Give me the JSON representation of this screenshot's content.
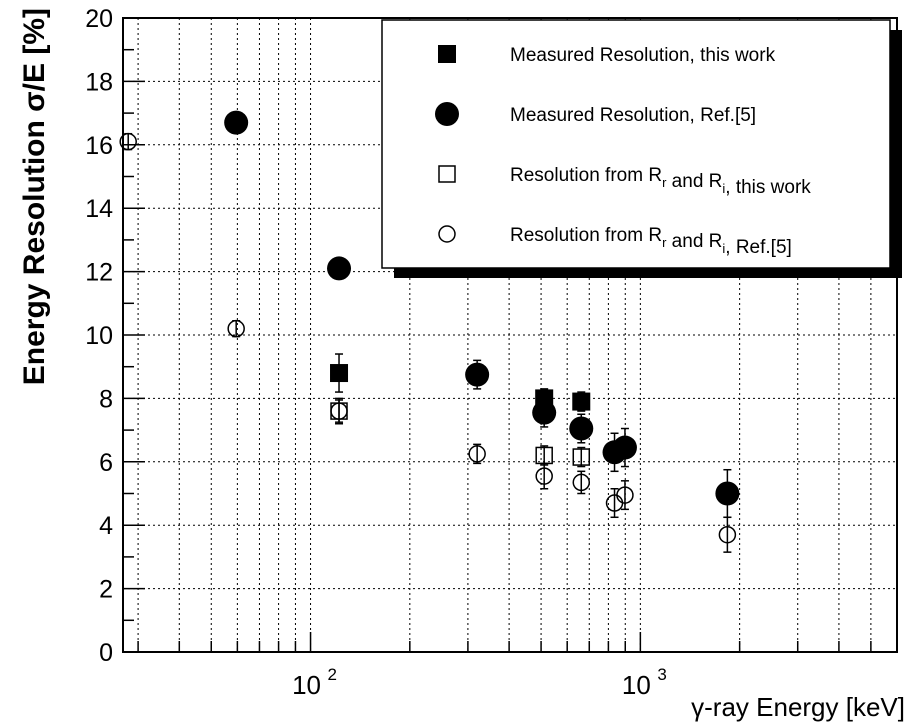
{
  "chart_data": {
    "type": "scatter",
    "xscale": "log",
    "xlim": [
      27,
      6000
    ],
    "ylim": [
      0,
      20
    ],
    "grid": true,
    "xlabel": "γ-ray Energy [keV]",
    "ylabel": "Energy Resolution σ/E [%]",
    "xticks": [
      {
        "base": "10",
        "exp": "2",
        "value": 100
      },
      {
        "base": "10",
        "exp": "3",
        "value": 1000
      }
    ],
    "yticks": [
      "0",
      "2",
      "4",
      "6",
      "8",
      "10",
      "12",
      "14",
      "16",
      "18",
      "20"
    ],
    "legend_position": "top-right",
    "series": [
      {
        "name": "Measured Resolution, this work",
        "marker": "filled-square",
        "points": [
          {
            "x": 122,
            "y": 8.8,
            "err": 0.6
          },
          {
            "x": 511,
            "y": 8.0,
            "err": 0.3
          },
          {
            "x": 662,
            "y": 7.9,
            "err": 0.3
          }
        ]
      },
      {
        "name": "Measured Resolution, Ref.[5]",
        "marker": "filled-circle",
        "points": [
          {
            "x": 59.5,
            "y": 16.7,
            "err": 0.2
          },
          {
            "x": 122,
            "y": 12.1,
            "err": 0.3
          },
          {
            "x": 320,
            "y": 8.75,
            "err": 0.45
          },
          {
            "x": 511,
            "y": 7.55,
            "err": 0.45
          },
          {
            "x": 662,
            "y": 7.05,
            "err": 0.45
          },
          {
            "x": 835,
            "y": 6.3,
            "err": 0.6
          },
          {
            "x": 898,
            "y": 6.45,
            "err": 0.6
          },
          {
            "x": 1836,
            "y": 5.0,
            "err": 0.75
          }
        ]
      },
      {
        "name": "Resolution from R",
        "name_sub": "r",
        "name_mid": " and R",
        "name_sub2": "i",
        "name_end": ", this work",
        "marker": "open-square",
        "points": [
          {
            "x": 122,
            "y": 7.6,
            "err": 0.4
          },
          {
            "x": 511,
            "y": 6.2,
            "err": 0.3
          },
          {
            "x": 662,
            "y": 6.15,
            "err": 0.3
          }
        ]
      },
      {
        "name": "Resolution from R",
        "name_sub": "r",
        "name_mid": " and R",
        "name_sub2": "i",
        "name_end": ", Ref.[5]",
        "marker": "open-circle",
        "points": [
          {
            "x": 28,
            "y": 16.1,
            "err": 0.25
          },
          {
            "x": 59.5,
            "y": 10.2,
            "err": 0.25
          },
          {
            "x": 122,
            "y": 7.6,
            "err": 0.35
          },
          {
            "x": 320,
            "y": 6.25,
            "err": 0.3
          },
          {
            "x": 511,
            "y": 5.55,
            "err": 0.4
          },
          {
            "x": 662,
            "y": 5.35,
            "err": 0.35
          },
          {
            "x": 835,
            "y": 4.7,
            "err": 0.45
          },
          {
            "x": 898,
            "y": 4.95,
            "err": 0.45
          },
          {
            "x": 1836,
            "y": 3.7,
            "err": 0.55
          }
        ]
      }
    ]
  }
}
